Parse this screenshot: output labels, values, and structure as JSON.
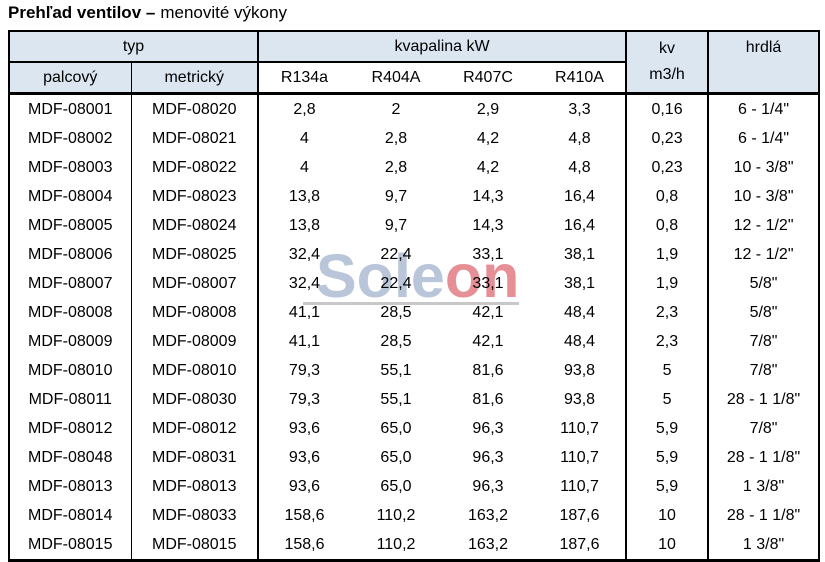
{
  "title": {
    "bold": "Prehľad ventilov –",
    "regular": "menovité výkony"
  },
  "watermark": {
    "part1": "Sole",
    "part2": "on"
  },
  "colors": {
    "header_bg": "#dce6f1",
    "watermark_blue": "#b9c5d8",
    "watermark_red": "#e78f96",
    "watermark_underline": "#c8c8c8",
    "border": "#000000"
  },
  "table": {
    "header": {
      "typ": "typ",
      "kvapalina": "kvapalina kW",
      "kv_line1": "kv",
      "kv_line2": "m3/h",
      "hrdla": "hrdlá",
      "palcovy": "palcový",
      "metricky": "metrický",
      "refrigerants": [
        "R134a",
        "R404A",
        "R407C",
        "R410A"
      ]
    },
    "rows": [
      [
        "MDF-08001",
        "MDF-08020",
        "2,8",
        "2",
        "2,9",
        "3,3",
        "0,16",
        "6 - 1/4\""
      ],
      [
        "MDF-08002",
        "MDF-08021",
        "4",
        "2,8",
        "4,2",
        "4,8",
        "0,23",
        "6 - 1/4\""
      ],
      [
        "MDF-08003",
        "MDF-08022",
        "4",
        "2,8",
        "4,2",
        "4,8",
        "0,23",
        "10 - 3/8\""
      ],
      [
        "MDF-08004",
        "MDF-08023",
        "13,8",
        "9,7",
        "14,3",
        "16,4",
        "0,8",
        "10 - 3/8\""
      ],
      [
        "MDF-08005",
        "MDF-08024",
        "13,8",
        "9,7",
        "14,3",
        "16,4",
        "0,8",
        "12 - 1/2\""
      ],
      [
        "MDF-08006",
        "MDF-08025",
        "32,4",
        "22,4",
        "33,1",
        "38,1",
        "1,9",
        "12 - 1/2\""
      ],
      [
        "MDF-08007",
        "MDF-08007",
        "32,4",
        "22,4",
        "33,1",
        "38,1",
        "1,9",
        "5/8\""
      ],
      [
        "MDF-08008",
        "MDF-08008",
        "41,1",
        "28,5",
        "42,1",
        "48,4",
        "2,3",
        "5/8\""
      ],
      [
        "MDF-08009",
        "MDF-08009",
        "41,1",
        "28,5",
        "42,1",
        "48,4",
        "2,3",
        "7/8\""
      ],
      [
        "MDF-08010",
        "MDF-08010",
        "79,3",
        "55,1",
        "81,6",
        "93,8",
        "5",
        "7/8\""
      ],
      [
        "MDF-08011",
        "MDF-08030",
        "79,3",
        "55,1",
        "81,6",
        "93,8",
        "5",
        "28 - 1 1/8\""
      ],
      [
        "MDF-08012",
        "MDF-08012",
        "93,6",
        "65,0",
        "96,3",
        "110,7",
        "5,9",
        "7/8\""
      ],
      [
        "MDF-08048",
        "MDF-08031",
        "93,6",
        "65,0",
        "96,3",
        "110,7",
        "5,9",
        "28 - 1 1/8\""
      ],
      [
        "MDF-08013",
        "MDF-08013",
        "93,6",
        "65,0",
        "96,3",
        "110,7",
        "5,9",
        "1 3/8\""
      ],
      [
        "MDF-08014",
        "MDF-08033",
        "158,6",
        "110,2",
        "163,2",
        "187,6",
        "10",
        "28 - 1 1/8\""
      ],
      [
        "MDF-08015",
        "MDF-08015",
        "158,6",
        "110,2",
        "163,2",
        "187,6",
        "10",
        "1 3/8\""
      ]
    ]
  }
}
